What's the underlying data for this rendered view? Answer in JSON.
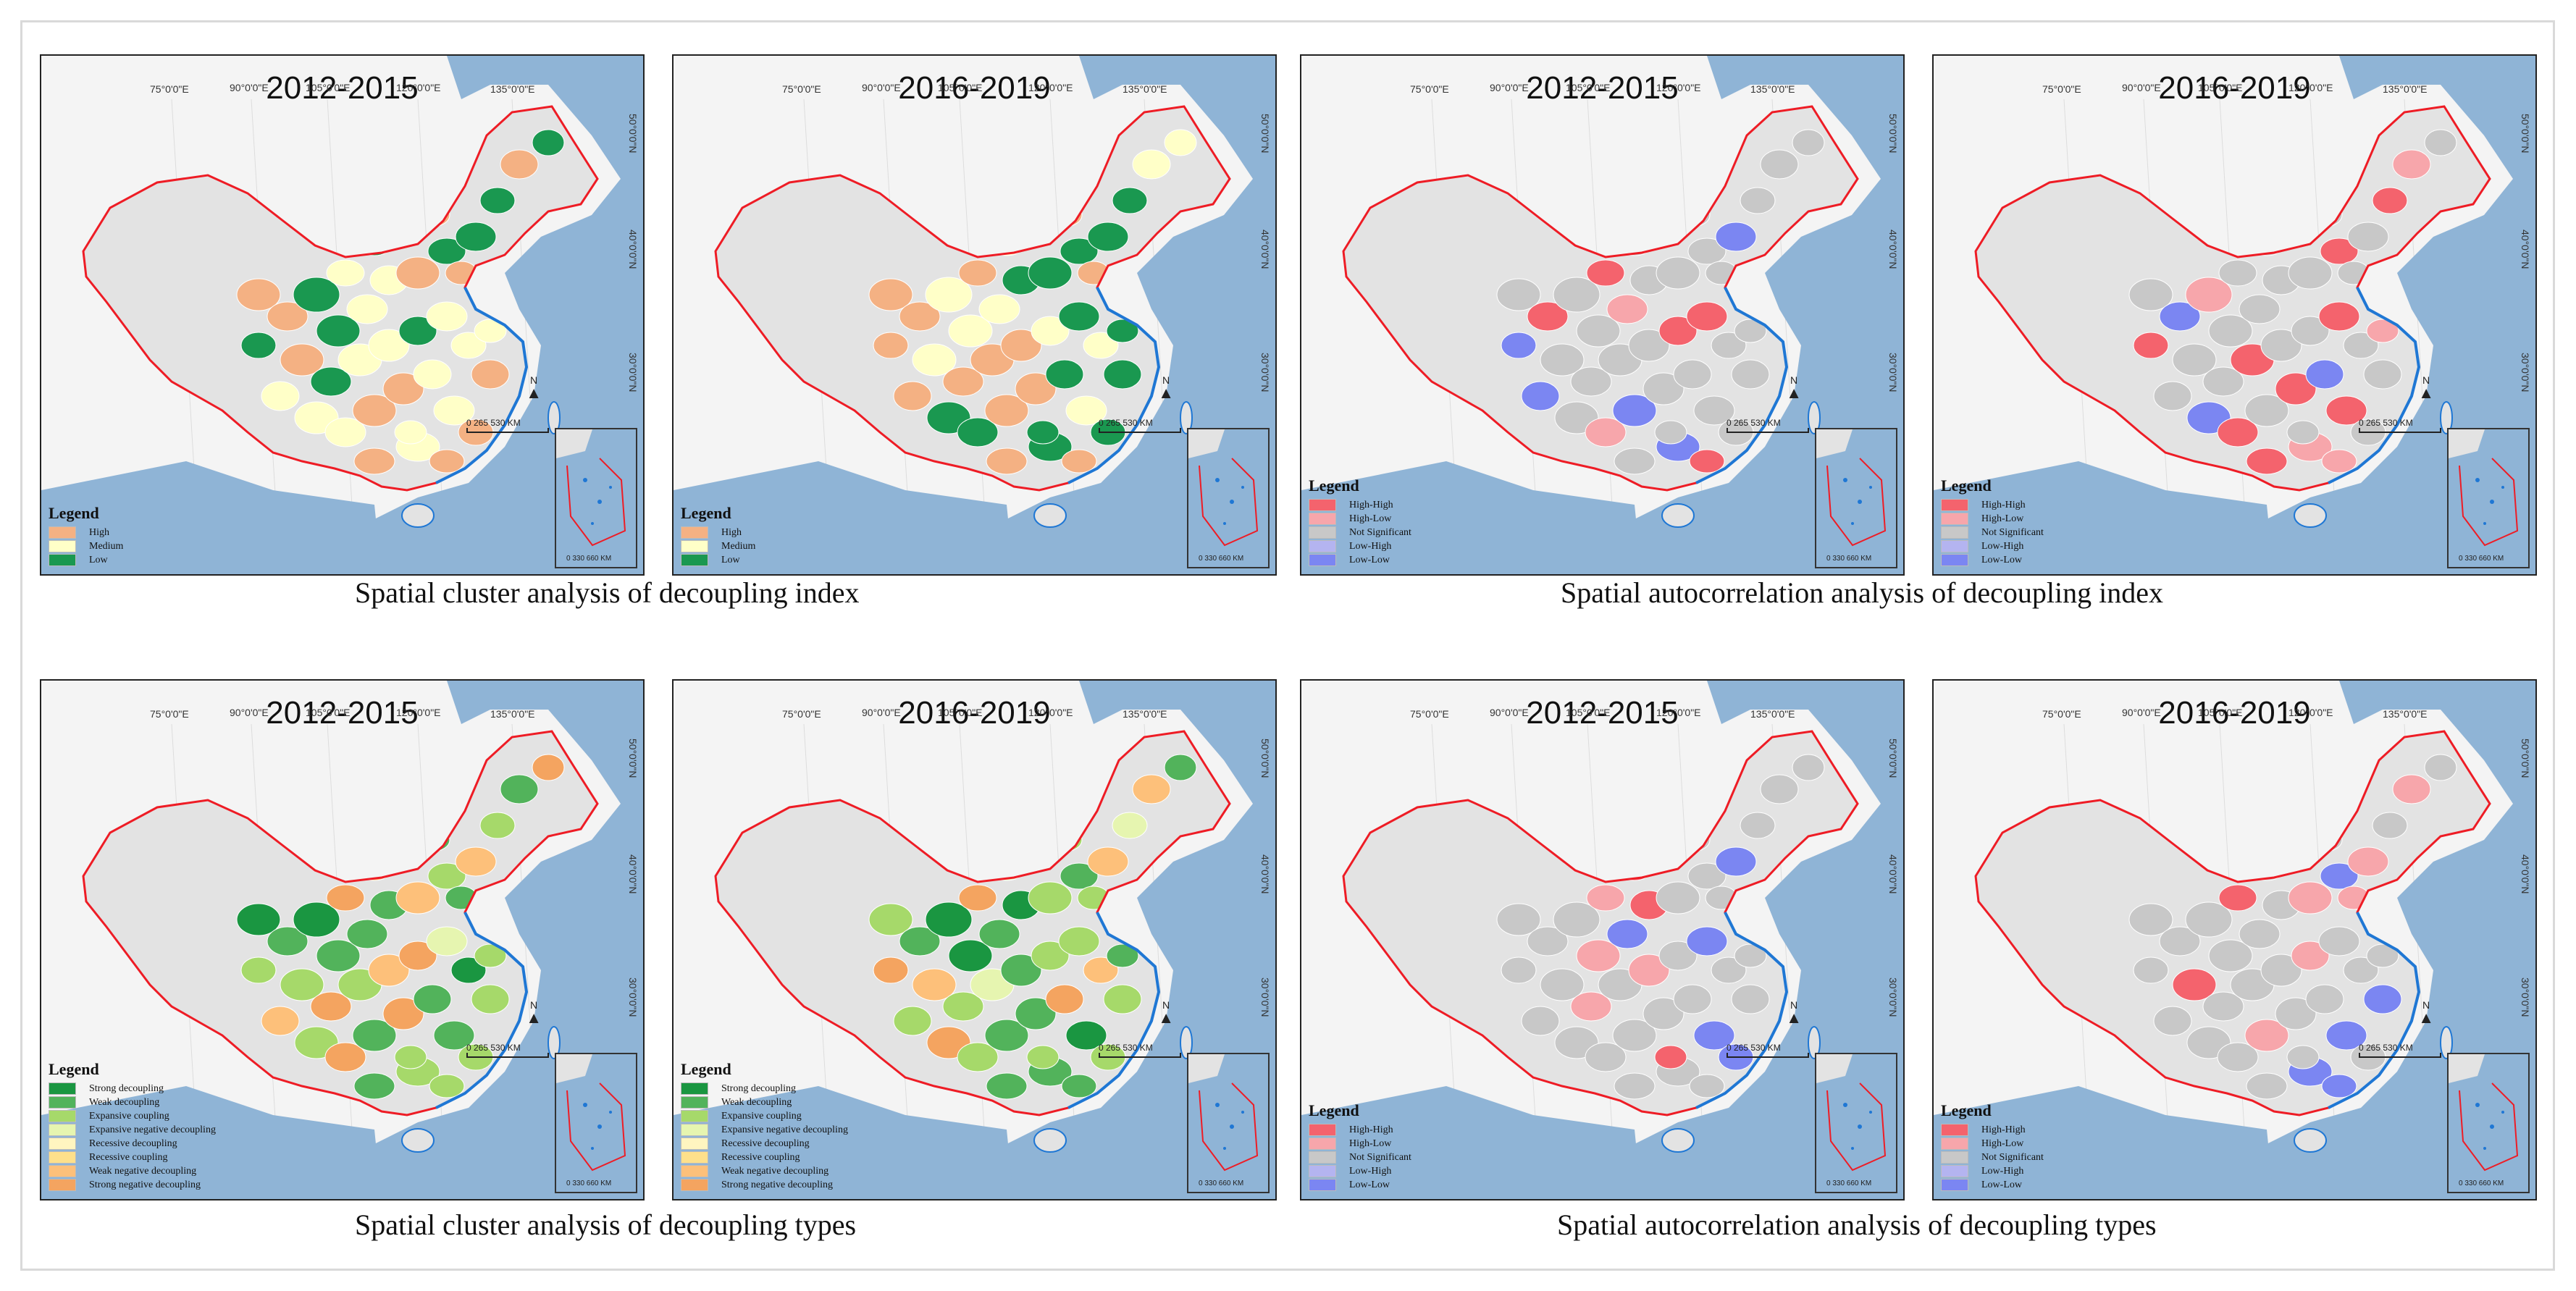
{
  "captions": {
    "top_left": "Spatial cluster analysis of decoupling index",
    "top_right": "Spatial autocorrelation analysis of decoupling index",
    "bottom_left": "Spatial cluster analysis of decoupling types",
    "bottom_right": "Spatial autocorrelation analysis of decoupling types"
  },
  "longitude_labels": [
    "75°0'0\"E",
    "90°0'0\"E",
    "105°0'0\"E",
    "120°0'0\"E",
    "135°0'0\"E"
  ],
  "latitude_labels": [
    "50°0'0\"N",
    "40°0'0\"N",
    "30°0'0\"N",
    "20°0'0\"N"
  ],
  "north_label": "N",
  "scale_bar": {
    "values": "0   265   530",
    "unit": "KM"
  },
  "inset_scale": {
    "values": "0  330 660",
    "unit": "KM"
  },
  "legend_title": "Legend",
  "legends": {
    "index_cluster": [
      {
        "label": "High",
        "color": "#f4b183"
      },
      {
        "label": "Medium",
        "color": "#ffffc8"
      },
      {
        "label": "Low",
        "color": "#1a9850"
      }
    ],
    "autocorr": [
      {
        "label": "High-High",
        "color": "#f4636d"
      },
      {
        "label": "High-Low",
        "color": "#f7a6ab"
      },
      {
        "label": "Not Significant",
        "color": "#c8c8c8"
      },
      {
        "label": "Low-High",
        "color": "#b4b4f0"
      },
      {
        "label": "Low-Low",
        "color": "#7b86f2"
      }
    ],
    "types_cluster": [
      {
        "label": "Strong decoupling",
        "color": "#1a9641"
      },
      {
        "label": "Weak decoupling",
        "color": "#52b35b"
      },
      {
        "label": "Expansive coupling",
        "color": "#a6d96a"
      },
      {
        "label": "Expansive negative decoupling",
        "color": "#e6f5b0"
      },
      {
        "label": "Recessive decoupling",
        "color": "#fff5c0"
      },
      {
        "label": "Recessive coupling",
        "color": "#fee08b"
      },
      {
        "label": "Weak negative decoupling",
        "color": "#fdc07a"
      },
      {
        "label": "Strong negative decoupling",
        "color": "#f4a460"
      }
    ]
  },
  "panels": [
    {
      "id": "p1",
      "period": "2012-2015",
      "legend": "index_cluster"
    },
    {
      "id": "p2",
      "period": "2016-2019",
      "legend": "index_cluster"
    },
    {
      "id": "p3",
      "period": "2012-2015",
      "legend": "autocorr"
    },
    {
      "id": "p4",
      "period": "2016-2019",
      "legend": "autocorr"
    },
    {
      "id": "p5",
      "period": "2012-2015",
      "legend": "types_cluster"
    },
    {
      "id": "p6",
      "period": "2016-2019",
      "legend": "types_cluster"
    },
    {
      "id": "p7",
      "period": "2012-2015",
      "legend": "autocorr"
    },
    {
      "id": "p8",
      "period": "2016-2019",
      "legend": "autocorr"
    }
  ],
  "colors": {
    "sea": "#8fb4d6",
    "land": "#e3e3e3",
    "border": "#ee1c25",
    "coast": "#1f77d4",
    "background": "#f4f4f4"
  }
}
